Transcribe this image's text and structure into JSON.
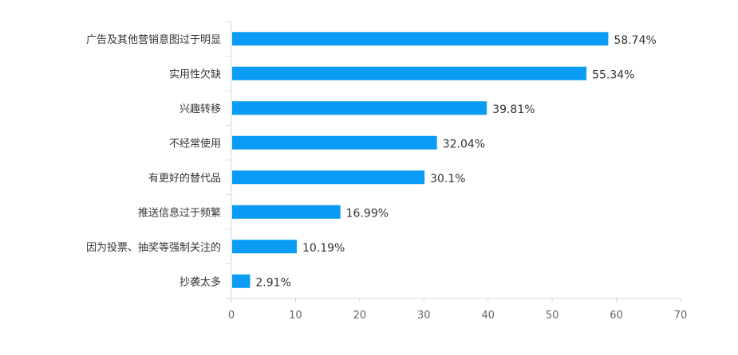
{
  "chart_data": {
    "type": "bar",
    "orientation": "horizontal",
    "categories": [
      "广告及其他营销意图过于明显",
      "实用性欠缺",
      "兴趣转移",
      "不经常使用",
      "有更好的替代品",
      "推送信息过于频繁",
      "因为投票、抽奖等强制关注的",
      "抄袭太多"
    ],
    "values": [
      58.74,
      55.34,
      39.81,
      32.04,
      30.1,
      16.99,
      10.19,
      2.91
    ],
    "value_labels": [
      "58.74%",
      "55.34%",
      "39.81%",
      "32.04%",
      "30.1%",
      "16.99%",
      "10.19%",
      "2.91%"
    ],
    "title": "",
    "xlabel": "",
    "ylabel": "",
    "xlim": [
      0,
      70
    ],
    "xticks": [
      "0",
      "10",
      "20",
      "30",
      "40",
      "50",
      "60",
      "70"
    ],
    "grid": false,
    "legend": "none",
    "bar_color": "#0a9bf5",
    "axis_color": "#cfd8e3"
  }
}
